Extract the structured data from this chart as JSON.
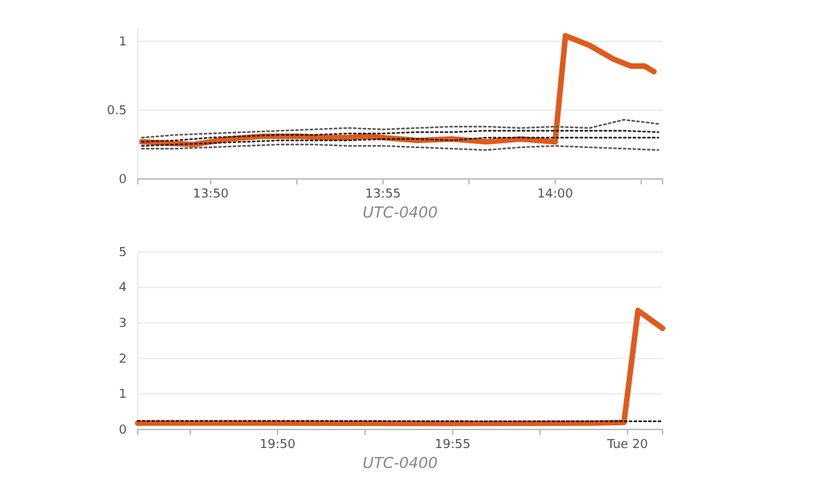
{
  "chart_data": [
    {
      "type": "line",
      "xlabel": "UTC-0400",
      "xlim": [
        13.798,
        14.052
      ],
      "ylim": [
        0,
        1.1
      ],
      "xticks": [
        {
          "value": 13.8333,
          "label": "13:50"
        },
        {
          "value": 13.875,
          "label": null
        },
        {
          "value": 13.9167,
          "label": "13:55"
        },
        {
          "value": 13.9583,
          "label": null
        },
        {
          "value": 14.0,
          "label": "14:00"
        },
        {
          "value": 14.0417,
          "label": null
        }
      ],
      "yticks": [
        0,
        0.5,
        1
      ],
      "grid": "y",
      "series": [
        {
          "color": "#555555",
          "line_style": "dotted",
          "x": [
            13.8,
            13.8167,
            13.8333,
            13.85,
            13.8667,
            13.8833,
            13.9,
            13.9167,
            13.9333,
            13.95,
            13.9667,
            13.9833,
            14.0,
            14.0167,
            14.0333,
            14.05
          ],
          "values": [
            0.3,
            0.32,
            0.33,
            0.34,
            0.35,
            0.36,
            0.37,
            0.36,
            0.37,
            0.38,
            0.38,
            0.37,
            0.38,
            0.37,
            0.43,
            0.4
          ]
        },
        {
          "color": "#222222",
          "line_style": "dotted",
          "x": [
            13.8,
            13.8167,
            13.8333,
            13.85,
            13.8667,
            13.8833,
            13.9,
            13.9167,
            13.9333,
            13.95,
            13.9667,
            13.9833,
            14.0,
            14.0167,
            14.0333,
            14.05
          ],
          "values": [
            0.27,
            0.28,
            0.3,
            0.31,
            0.32,
            0.32,
            0.33,
            0.33,
            0.34,
            0.34,
            0.35,
            0.35,
            0.35,
            0.35,
            0.35,
            0.34
          ]
        },
        {
          "color": "#222222",
          "line_style": "dotted",
          "x": [
            13.8,
            13.8167,
            13.8333,
            13.85,
            13.8667,
            13.8833,
            13.9,
            13.9167,
            13.9333,
            13.95,
            13.9667,
            13.9833,
            14.0,
            14.0167,
            14.0333,
            14.05
          ],
          "values": [
            0.24,
            0.25,
            0.26,
            0.27,
            0.28,
            0.28,
            0.28,
            0.29,
            0.29,
            0.28,
            0.3,
            0.3,
            0.3,
            0.3,
            0.3,
            0.3
          ]
        },
        {
          "color": "#555555",
          "line_style": "dotted",
          "x": [
            13.8,
            13.8167,
            13.8333,
            13.85,
            13.8667,
            13.8833,
            13.9,
            13.9167,
            13.9333,
            13.95,
            13.9667,
            13.9833,
            14.0,
            14.0167,
            14.0333,
            14.05
          ],
          "values": [
            0.22,
            0.22,
            0.23,
            0.24,
            0.25,
            0.25,
            0.24,
            0.24,
            0.23,
            0.22,
            0.21,
            0.23,
            0.24,
            0.23,
            0.22,
            0.21
          ]
        },
        {
          "color": "#e05a1b",
          "line_style": "solid",
          "x": [
            13.8,
            13.825,
            13.8417,
            13.8583,
            13.875,
            13.8917,
            13.9,
            13.9083,
            13.9333,
            13.95,
            13.9667,
            13.9833,
            14.0,
            14.005,
            14.0167,
            14.0283,
            14.0367,
            14.0433,
            14.0478
          ],
          "values": [
            0.27,
            0.25,
            0.29,
            0.31,
            0.31,
            0.3,
            0.3,
            0.31,
            0.28,
            0.29,
            0.27,
            0.29,
            0.27,
            1.04,
            0.97,
            0.87,
            0.82,
            0.82,
            0.78
          ]
        }
      ]
    },
    {
      "type": "line",
      "xlabel": "UTC-0400",
      "xlim": [
        19.7667,
        20.0167
      ],
      "ylim": [
        0,
        5
      ],
      "xticks": [
        {
          "value": 19.7917,
          "label": null
        },
        {
          "value": 19.8333,
          "label": "19:50"
        },
        {
          "value": 19.875,
          "label": null
        },
        {
          "value": 19.9167,
          "label": "19:55"
        },
        {
          "value": 19.9583,
          "label": null
        },
        {
          "value": 20.0,
          "label": "Tue 20"
        }
      ],
      "yticks": [
        0,
        1,
        2,
        3,
        4,
        5
      ],
      "grid": "y",
      "series": [
        {
          "color": "#111111",
          "line_style": "dotted",
          "x": [
            19.7667,
            19.85,
            19.9333,
            20.0167
          ],
          "values": [
            0.24,
            0.24,
            0.23,
            0.23
          ]
        },
        {
          "color": "#e05a1b",
          "line_style": "solid",
          "x": [
            19.7667,
            19.8333,
            19.9167,
            19.9833,
            19.9983,
            20.005,
            20.0167
          ],
          "values": [
            0.18,
            0.18,
            0.17,
            0.18,
            0.2,
            3.35,
            2.85
          ]
        }
      ]
    }
  ]
}
